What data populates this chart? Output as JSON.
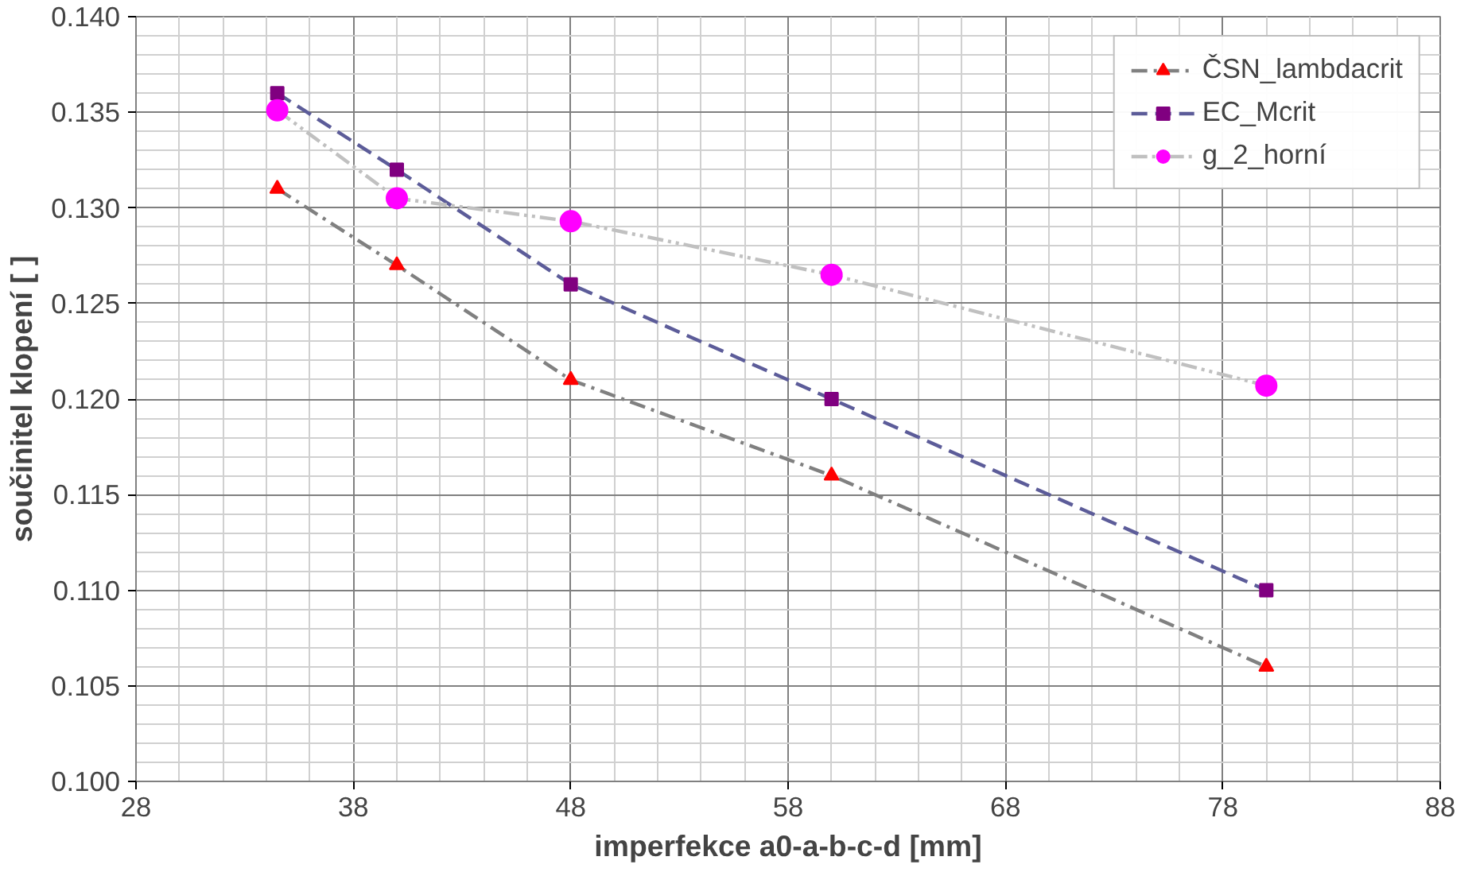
{
  "chart_data": {
    "type": "line",
    "xlabel": "imperfekce a0-a-b-c-d [mm]",
    "ylabel": "součinitel klopení [ ]",
    "x": [
      34.5,
      40,
      48,
      60,
      80
    ],
    "series": [
      {
        "name": "ČSN_lambdacrit",
        "color": "#808080",
        "colors": [
          "#ff0000",
          "#ff0000",
          "#ff0000",
          "#ff0000",
          "#ff0000"
        ],
        "marker": "triangle",
        "line_style": "dashdot",
        "values": [
          0.131,
          0.127,
          0.121,
          0.116,
          0.106
        ]
      },
      {
        "name": "EC_Mcrit",
        "color": "#5c5c99",
        "colors": [
          "#800080",
          "#800080",
          "#800080",
          "#800080",
          "#800080"
        ],
        "marker": "square",
        "line_style": "dashed",
        "values": [
          0.136,
          0.132,
          0.126,
          0.12,
          0.11
        ]
      },
      {
        "name": "g_2_horní",
        "color": "#c0c0c0",
        "colors": [
          "#ff00ff",
          "#ff00ff",
          "#ff00ff",
          "#ff00ff",
          "#ff00ff"
        ],
        "marker": "circle",
        "line_style": "dashdotdot",
        "values": [
          0.1351,
          0.1305,
          0.1293,
          0.1265,
          0.1207
        ]
      }
    ],
    "xlim": [
      28,
      88
    ],
    "xticks": [
      28,
      38,
      48,
      58,
      68,
      78,
      88
    ],
    "ylim": [
      0.1,
      0.14
    ],
    "yticks": [
      {
        "value": 0.1,
        "label": "0.100"
      },
      {
        "value": 0.105,
        "label": "0.105"
      },
      {
        "value": 0.11,
        "label": "0.110"
      },
      {
        "value": 0.115,
        "label": "0.115"
      },
      {
        "value": 0.12,
        "label": "0.120"
      },
      {
        "value": 0.125,
        "label": "0.125"
      },
      {
        "value": 0.13,
        "label": "0.130"
      },
      {
        "value": 0.135,
        "label": "0.135"
      },
      {
        "value": 0.14,
        "label": "0.140"
      }
    ],
    "grid": true,
    "legend": "top right"
  }
}
